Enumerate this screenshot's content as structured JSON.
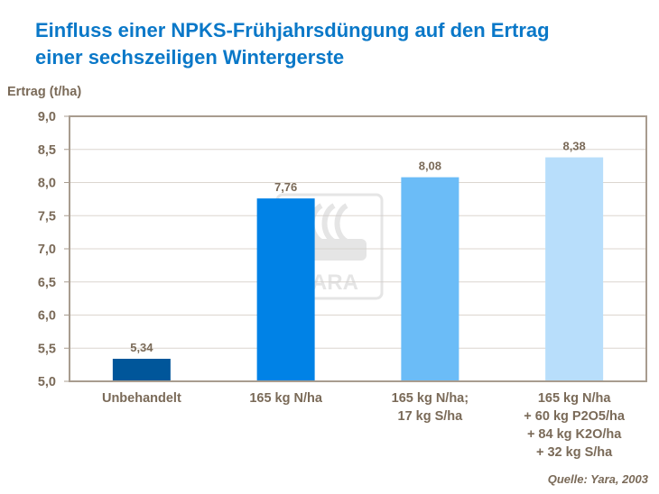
{
  "title_lines": [
    "Einfluss einer NPKS-Frühjahrsdüngung auf den Ertrag",
    "einer sechszeiligen Wintergerste"
  ],
  "source": "Quelle: Yara, 2003",
  "watermark": "YARA",
  "chart_data": {
    "type": "bar",
    "title": "Einfluss einer NPKS-Frühjahrsdüngung auf den Ertrag einer sechszeiligen Wintergerste",
    "ylabel": "Ertrag (t/ha)",
    "xlabel": "",
    "ylim": [
      5.0,
      9.0
    ],
    "yticks": [
      "5,0",
      "5,5",
      "6,0",
      "6,5",
      "7,0",
      "7,5",
      "8,0",
      "8,5",
      "9,0"
    ],
    "grid": true,
    "categories": [
      [
        "Unbehandelt"
      ],
      [
        "165 kg N/ha"
      ],
      [
        "165 kg N/ha;",
        "17 kg S/ha"
      ],
      [
        "165 kg N/ha",
        "+ 60 kg P2O5/ha",
        "+ 84 kg K2O/ha",
        "+ 32 kg S/ha"
      ]
    ],
    "values": [
      5.34,
      7.76,
      8.08,
      8.38
    ],
    "data_labels": [
      "5,34",
      "7,76",
      "8,08",
      "8,38"
    ],
    "colors": [
      "#00569a",
      "#0082e6",
      "#6bbcf7",
      "#b8defb"
    ],
    "axis_color": "#a89c8f",
    "text_color": "#7a6a58"
  }
}
